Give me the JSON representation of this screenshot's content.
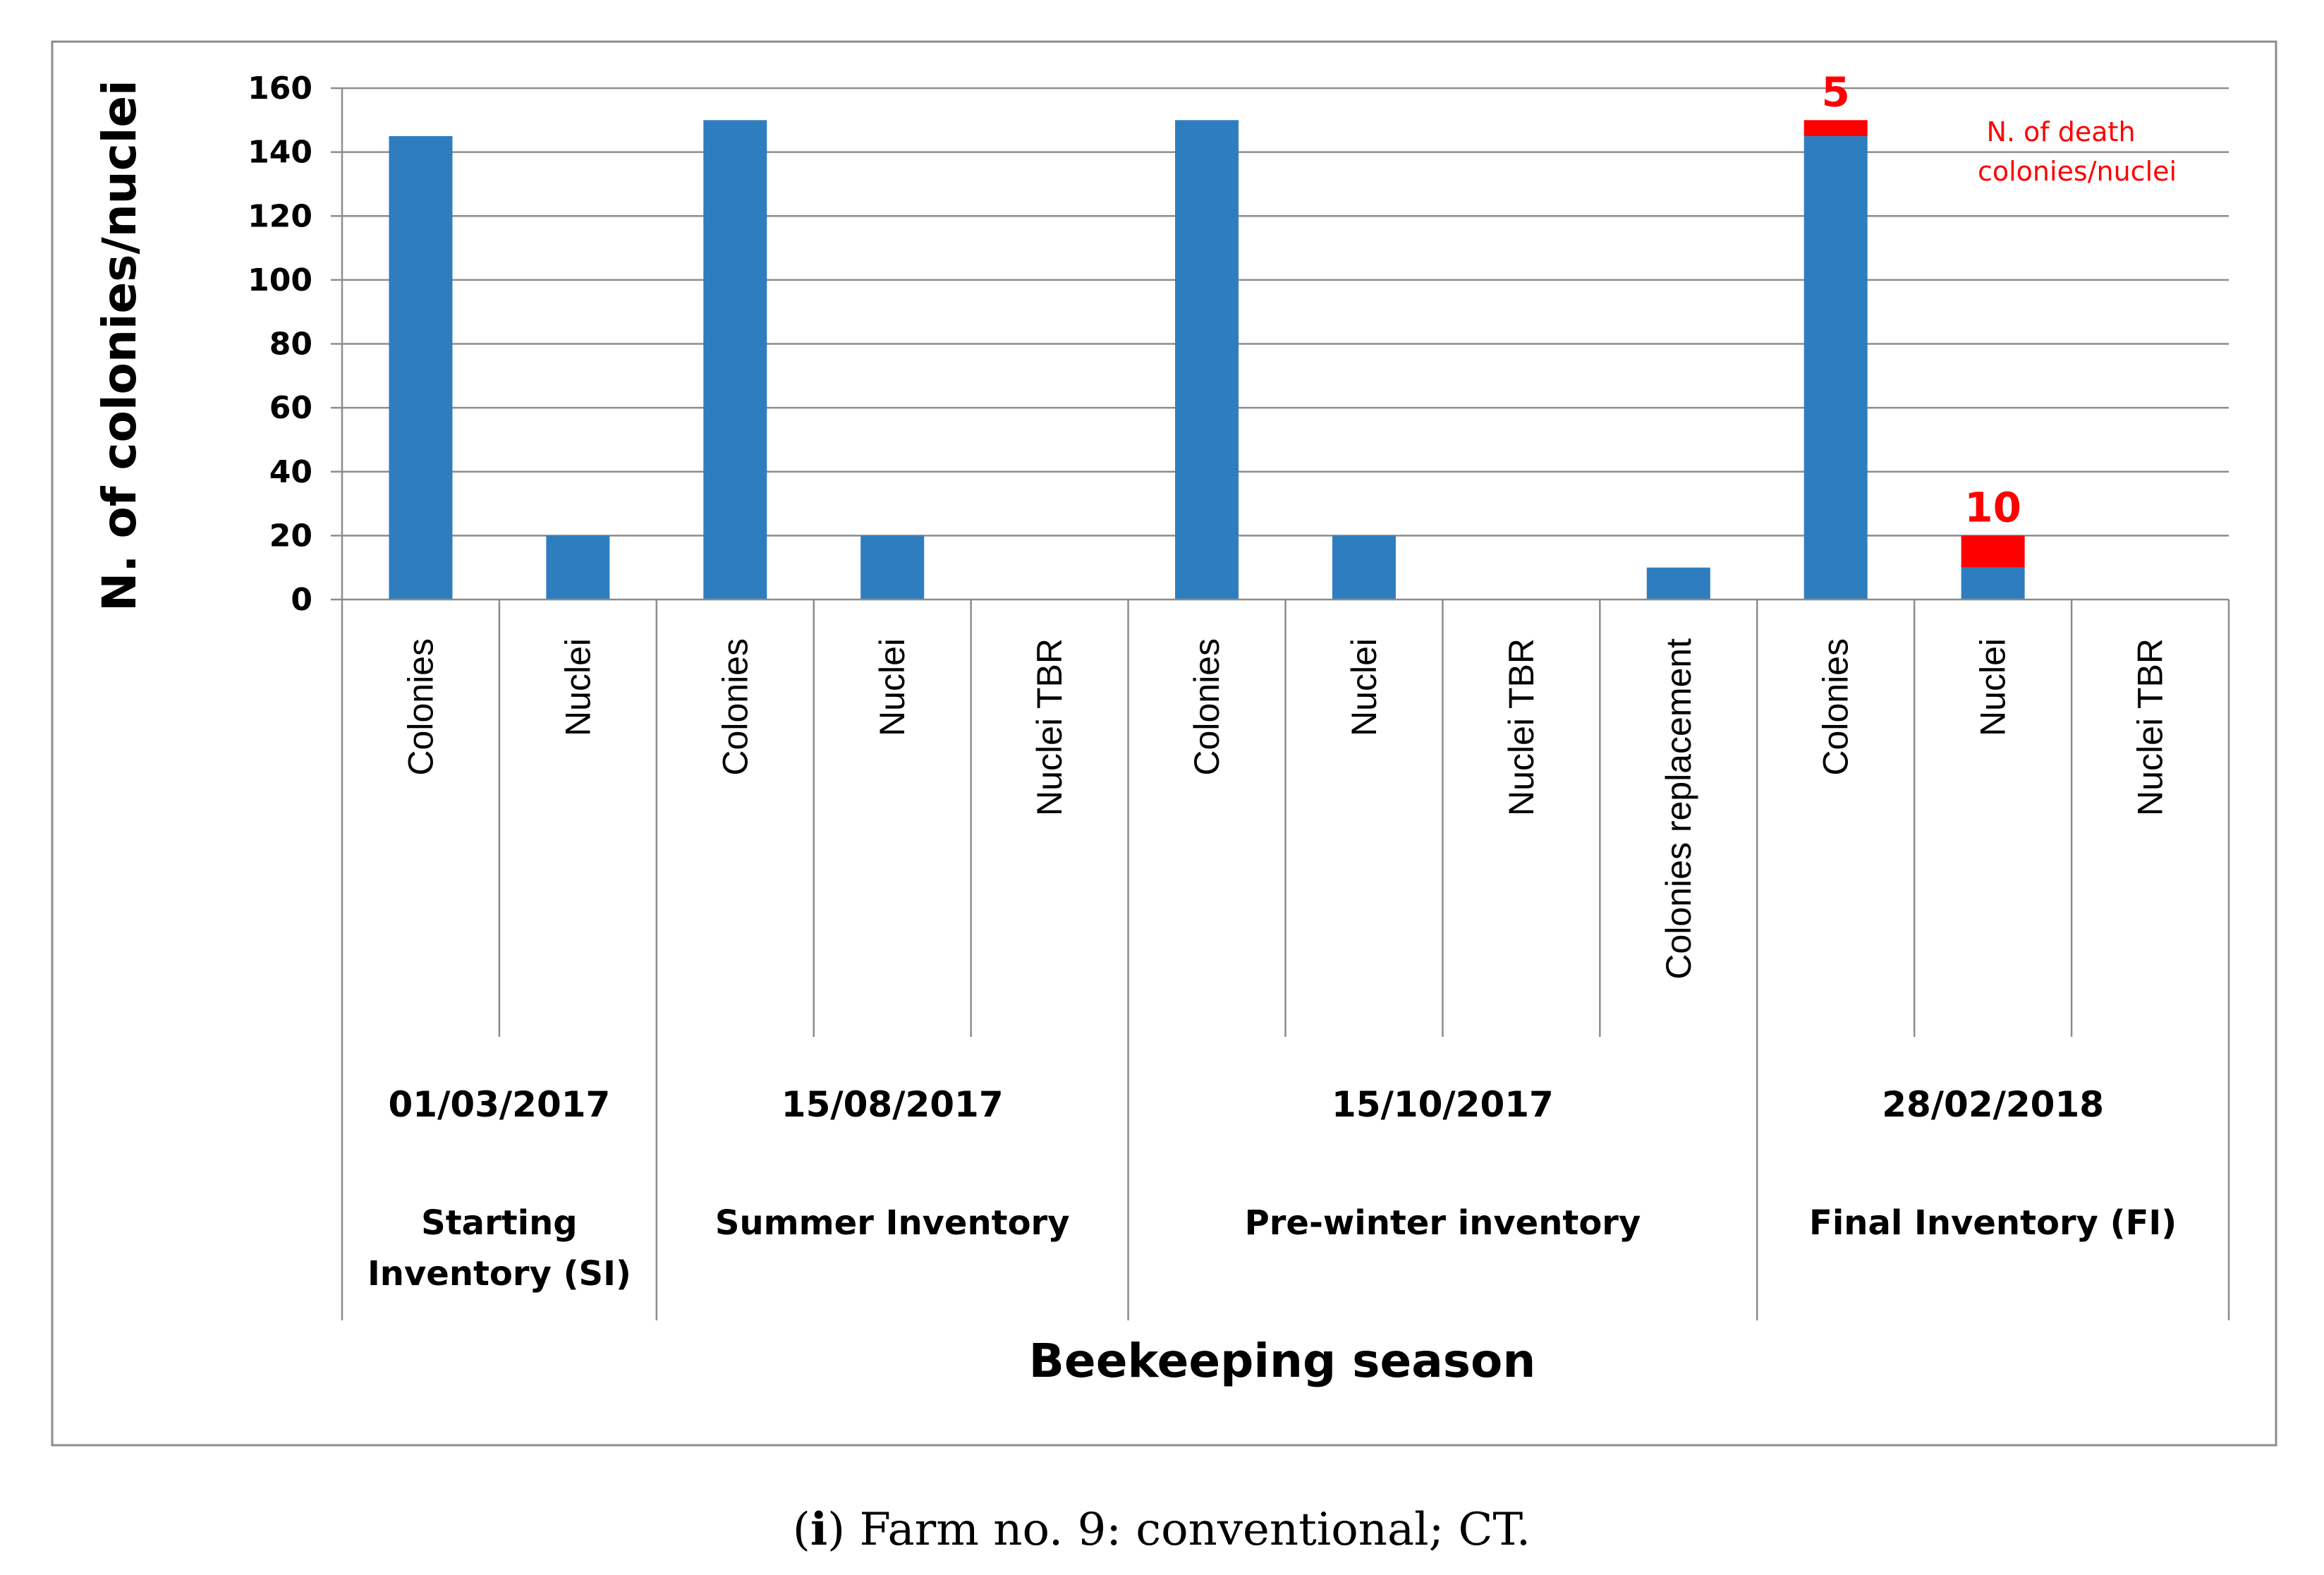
{
  "chart_data": {
    "type": "bar",
    "stacked": true,
    "ylabel": "N. of colonies/nuclei",
    "xlabel": "Beekeeping season",
    "ylim": [
      0,
      160
    ],
    "yticks": [
      0,
      20,
      40,
      60,
      80,
      100,
      120,
      140,
      160
    ],
    "grid": true,
    "categories": [
      "Colonies",
      "Nuclei",
      "Colonies",
      "Nuclei",
      "Nuclei TBR",
      "Colonies",
      "Nuclei",
      "Nuclei TBR",
      "Colonies replacement",
      "Colonies",
      "Nuclei",
      "Nuclei TBR"
    ],
    "groups": [
      {
        "date": "01/03/2017",
        "label_lines": [
          "Starting",
          "Inventory (SI)"
        ],
        "count": 2
      },
      {
        "date": "15/08/2017",
        "label_lines": [
          "Summer Inventory"
        ],
        "count": 3
      },
      {
        "date": "15/10/2017",
        "label_lines": [
          "Pre-winter inventory"
        ],
        "count": 4
      },
      {
        "date": "28/02/2018",
        "label_lines": [
          "Final Inventory (FI)"
        ],
        "count": 3
      }
    ],
    "series": [
      {
        "values": [
          145,
          20,
          150,
          20,
          0,
          150,
          20,
          0,
          10,
          145,
          10,
          0
        ],
        "color": "#2e7ebf"
      },
      {
        "values": [
          0,
          0,
          0,
          0,
          0,
          0,
          0,
          0,
          0,
          5,
          10,
          0
        ],
        "color": "#ff0000"
      }
    ],
    "data_labels": [
      {
        "category_index": 9,
        "text": "5"
      },
      {
        "category_index": 10,
        "text": "10"
      }
    ],
    "annotation": [
      "N. of death",
      "colonies/nuclei"
    ]
  },
  "caption": {
    "open": "(",
    "bold": "i",
    "rest": ") Farm no. 9: conventional; CT."
  }
}
